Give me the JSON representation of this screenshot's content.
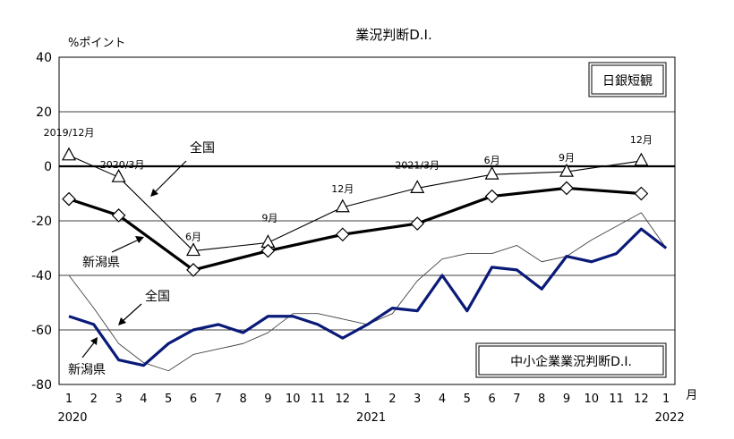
{
  "chart_data": {
    "type": "line",
    "title": "業況判断D.I.",
    "ylabel": "%ポイント",
    "ylim": [
      -80,
      40
    ],
    "yticks": [
      40,
      20,
      0,
      -20,
      -40,
      -60,
      -80
    ],
    "x_month_labels": [
      "1",
      "2",
      "3",
      "4",
      "5",
      "6",
      "7",
      "8",
      "9",
      "10",
      "11",
      "12",
      "1",
      "2",
      "3",
      "4",
      "5",
      "6",
      "7",
      "8",
      "9",
      "10",
      "11",
      "12",
      "1"
    ],
    "x_unit_label": "月",
    "x_year_labels": [
      {
        "text": "2020",
        "index": 0
      },
      {
        "text": "2021",
        "index": 12
      },
      {
        "text": "2022",
        "index": 24
      }
    ],
    "upper_panel": {
      "box_label": "日銀短観",
      "series": [
        {
          "name": "全国",
          "style": "thin-triangle",
          "points": [
            {
              "index": 0,
              "value": 4,
              "label": "2019/12月"
            },
            {
              "index": 2,
              "value": -4,
              "label": "2020/3月"
            },
            {
              "index": 5,
              "value": -31,
              "label": "6月"
            },
            {
              "index": 8,
              "value": -28,
              "label": "9月"
            },
            {
              "index": 11,
              "value": -15,
              "label": "12月"
            },
            {
              "index": 14,
              "value": -8,
              "label": "2021/3月"
            },
            {
              "index": 17,
              "value": -3,
              "label": "6月"
            },
            {
              "index": 20,
              "value": -2,
              "label": "9月"
            },
            {
              "index": 23,
              "value": 2,
              "label": "12月"
            }
          ]
        },
        {
          "name": "新潟県",
          "style": "thick-diamond",
          "points": [
            {
              "index": 0,
              "value": -12
            },
            {
              "index": 2,
              "value": -18
            },
            {
              "index": 5,
              "value": -38
            },
            {
              "index": 8,
              "value": -31
            },
            {
              "index": 11,
              "value": -25
            },
            {
              "index": 14,
              "value": -21
            },
            {
              "index": 17,
              "value": -11
            },
            {
              "index": 20,
              "value": -8
            },
            {
              "index": 23,
              "value": -10
            }
          ]
        }
      ]
    },
    "lower_panel": {
      "box_label": "中小企業業況判断D.I.",
      "series": [
        {
          "name": "全国",
          "style": "thin",
          "values": [
            -40,
            -52,
            -65,
            -72,
            -75,
            -69,
            -67,
            -65,
            -61,
            -54,
            -54,
            -56,
            -58,
            -54,
            -42,
            -34,
            -32,
            -32,
            -29,
            -35,
            -33,
            -27,
            -22,
            -17,
            -30
          ]
        },
        {
          "name": "新潟県",
          "style": "thick-navy",
          "values": [
            -55,
            -58,
            -71,
            -73,
            -65,
            -60,
            -58,
            -61,
            -55,
            -55,
            -58,
            -63,
            -58,
            -52,
            -53,
            -40,
            -53,
            -37,
            -38,
            -45,
            -33,
            -35,
            -32,
            -23,
            -30
          ]
        }
      ]
    },
    "annotations": [
      {
        "text": "全国",
        "target": "upper-全国"
      },
      {
        "text": "新潟県",
        "target": "upper-新潟県"
      },
      {
        "text": "全国",
        "target": "lower-全国"
      },
      {
        "text": "新潟県",
        "target": "lower-新潟県"
      }
    ],
    "colors": {
      "navy": "#0a1a78",
      "black": "#000000",
      "thin_gray": "#444444",
      "grid": "#000000"
    }
  }
}
